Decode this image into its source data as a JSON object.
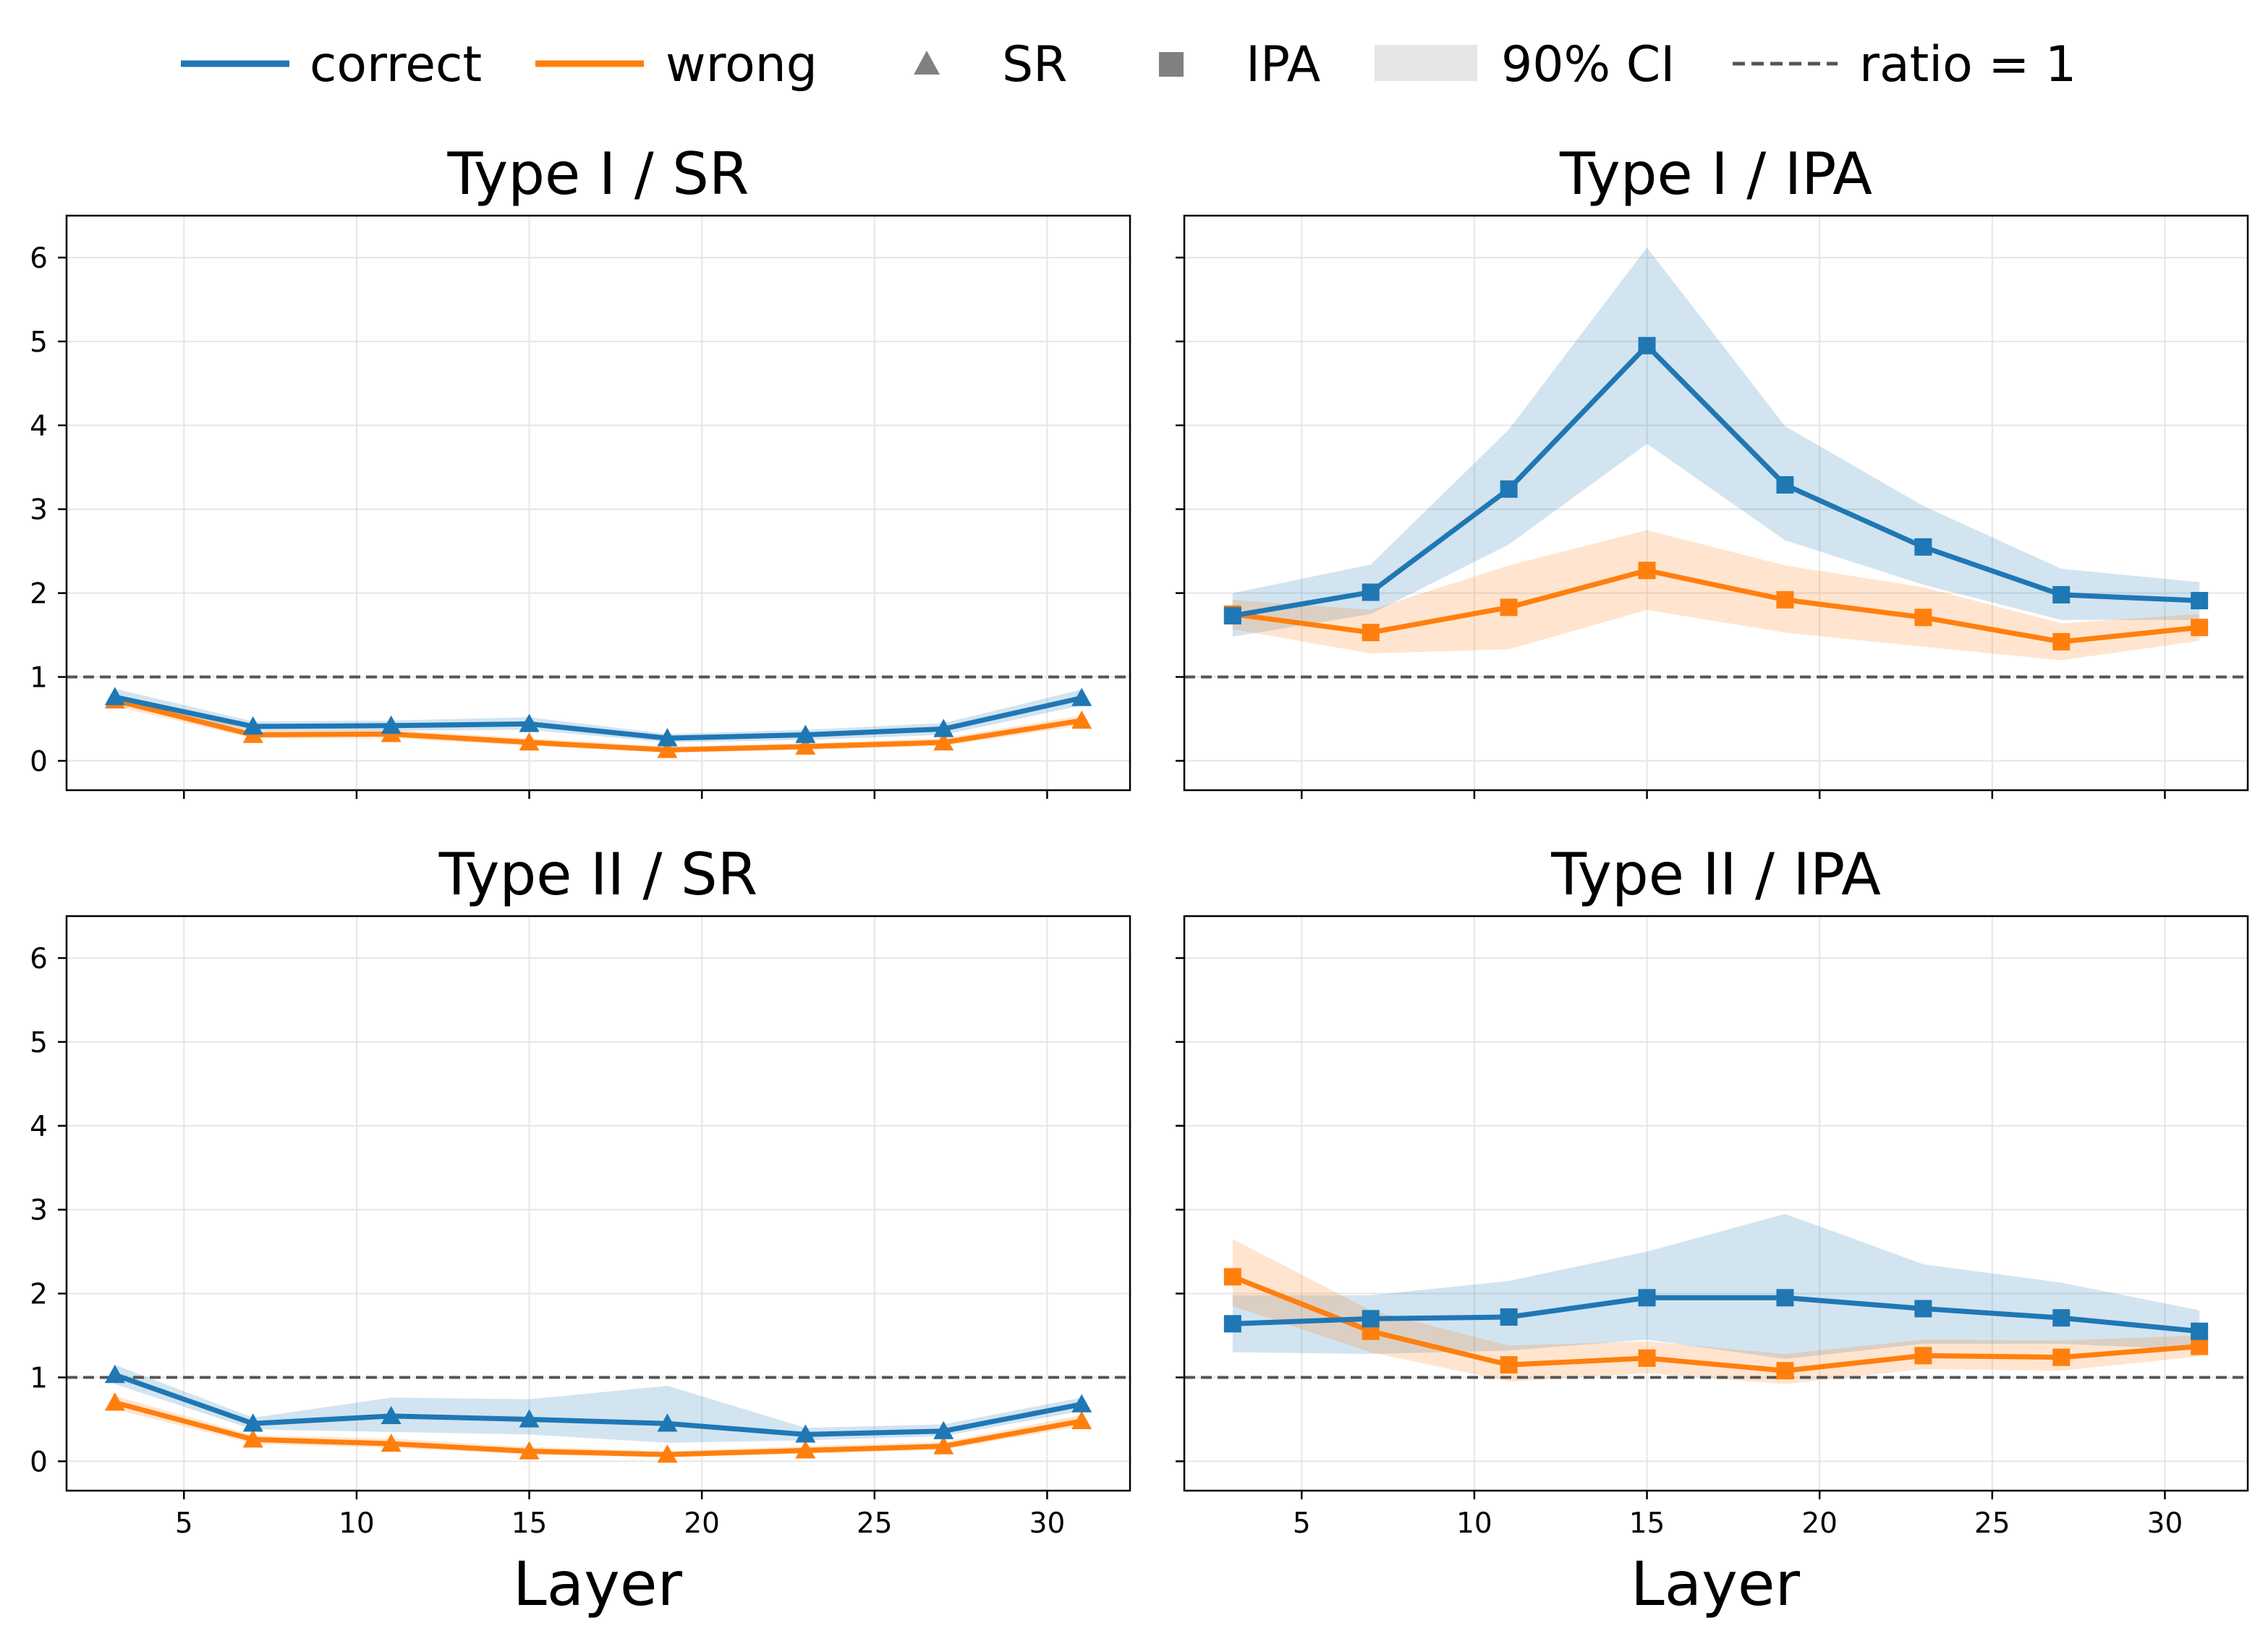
{
  "legend": {
    "correct": "correct",
    "wrong": "wrong",
    "sr": "SR",
    "ipa": "IPA",
    "ci": "90% CI",
    "ratio": "ratio = 1"
  },
  "colors": {
    "correct": "#1f77b4",
    "wrong": "#ff7f0e",
    "reference_line": "#555555",
    "legend_marker": "#808080",
    "ci_legend": "#e6e6e6"
  },
  "shared_axes": {
    "xlabel": "Layer",
    "xlim": [
      1.6,
      32.4
    ],
    "ylim": [
      -0.35,
      6.5
    ],
    "xticks": [
      5,
      10,
      15,
      20,
      25,
      30
    ],
    "yticks": [
      0,
      1,
      2,
      3,
      4,
      5,
      6
    ],
    "reference_y": 1,
    "grid": true
  },
  "chart_data": [
    {
      "type": "line",
      "title": "Type I / SR",
      "marker": "triangle",
      "x": [
        3,
        7,
        11,
        15,
        19,
        23,
        27,
        31
      ],
      "series": [
        {
          "name": "correct",
          "values": [
            0.76,
            0.41,
            0.42,
            0.44,
            0.27,
            0.31,
            0.38,
            0.75
          ],
          "ci_low": [
            0.68,
            0.36,
            0.36,
            0.37,
            0.22,
            0.25,
            0.31,
            0.66
          ],
          "ci_high": [
            0.86,
            0.47,
            0.48,
            0.52,
            0.32,
            0.37,
            0.45,
            0.85
          ]
        },
        {
          "name": "wrong",
          "values": [
            0.72,
            0.31,
            0.32,
            0.22,
            0.13,
            0.17,
            0.22,
            0.48
          ],
          "ci_low": [
            0.65,
            0.27,
            0.27,
            0.18,
            0.1,
            0.13,
            0.18,
            0.42
          ],
          "ci_high": [
            0.79,
            0.36,
            0.37,
            0.27,
            0.17,
            0.21,
            0.27,
            0.54
          ]
        }
      ]
    },
    {
      "type": "line",
      "title": "Type I / IPA",
      "marker": "square",
      "x": [
        3,
        7,
        11,
        15,
        19,
        23,
        27,
        31
      ],
      "series": [
        {
          "name": "correct",
          "values": [
            1.73,
            2.01,
            3.24,
            4.95,
            3.29,
            2.55,
            1.98,
            1.91
          ],
          "ci_low": [
            1.48,
            1.75,
            2.58,
            3.78,
            2.63,
            2.1,
            1.68,
            1.68
          ],
          "ci_high": [
            2.0,
            2.34,
            3.95,
            6.12,
            3.99,
            3.04,
            2.29,
            2.13
          ]
        },
        {
          "name": "wrong",
          "values": [
            1.75,
            1.53,
            1.83,
            2.27,
            1.92,
            1.71,
            1.42,
            1.59
          ],
          "ci_low": [
            1.57,
            1.28,
            1.33,
            1.8,
            1.53,
            1.36,
            1.2,
            1.43
          ],
          "ci_high": [
            1.92,
            1.8,
            2.33,
            2.75,
            2.33,
            2.07,
            1.64,
            1.75
          ]
        }
      ]
    },
    {
      "type": "line",
      "title": "Type II / SR",
      "marker": "triangle",
      "x": [
        3,
        7,
        11,
        15,
        19,
        23,
        27,
        31
      ],
      "series": [
        {
          "name": "correct",
          "values": [
            1.03,
            0.45,
            0.54,
            0.5,
            0.45,
            0.32,
            0.36,
            0.68
          ],
          "ci_low": [
            0.92,
            0.38,
            0.35,
            0.32,
            0.22,
            0.25,
            0.3,
            0.6
          ],
          "ci_high": [
            1.15,
            0.52,
            0.76,
            0.74,
            0.9,
            0.4,
            0.44,
            0.76
          ]
        },
        {
          "name": "wrong",
          "values": [
            0.7,
            0.26,
            0.21,
            0.12,
            0.08,
            0.13,
            0.18,
            0.48
          ],
          "ci_low": [
            0.62,
            0.21,
            0.16,
            0.08,
            0.05,
            0.09,
            0.14,
            0.42
          ],
          "ci_high": [
            0.78,
            0.31,
            0.27,
            0.17,
            0.12,
            0.18,
            0.23,
            0.55
          ]
        }
      ]
    },
    {
      "type": "line",
      "title": "Type II / IPA",
      "marker": "square",
      "x": [
        3,
        7,
        11,
        15,
        19,
        23,
        27,
        31
      ],
      "series": [
        {
          "name": "correct",
          "values": [
            1.64,
            1.7,
            1.72,
            1.95,
            1.95,
            1.82,
            1.71,
            1.55
          ],
          "ci_low": [
            1.3,
            1.28,
            1.32,
            1.45,
            1.22,
            1.4,
            1.4,
            1.33
          ],
          "ci_high": [
            1.98,
            1.98,
            2.15,
            2.5,
            2.95,
            2.35,
            2.13,
            1.8
          ]
        },
        {
          "name": "wrong",
          "values": [
            2.2,
            1.55,
            1.15,
            1.23,
            1.08,
            1.26,
            1.24,
            1.37
          ],
          "ci_low": [
            1.85,
            1.3,
            0.95,
            1.05,
            0.92,
            1.1,
            1.08,
            1.25
          ],
          "ci_high": [
            2.65,
            1.8,
            1.38,
            1.43,
            1.28,
            1.45,
            1.44,
            1.5
          ]
        }
      ]
    }
  ]
}
